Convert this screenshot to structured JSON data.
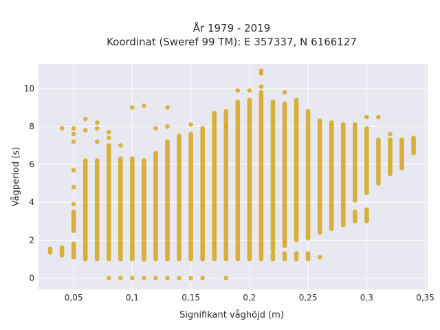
{
  "chart_data": {
    "type": "scatter",
    "title_line1": "År 1979 - 2019",
    "title_line2": "Koordinat (Sweref 99 TM): E 357337, N 6166127",
    "xlabel": "Signifikant våghöjd (m)",
    "ylabel": "Vågperiod (s)",
    "xlim": [
      0.02,
      0.352
    ],
    "ylim": [
      -0.6,
      11.3
    ],
    "x_ticks": [
      0.05,
      0.1,
      0.15,
      0.2,
      0.25,
      0.3,
      0.35
    ],
    "x_tick_labels": [
      "0,05",
      "0,1",
      "0,15",
      "0,2",
      "0,25",
      "0,3",
      "0,35"
    ],
    "y_ticks": [
      0,
      2,
      4,
      6,
      8,
      10
    ],
    "y_tick_labels": [
      "0",
      "2",
      "4",
      "6",
      "8",
      "10"
    ],
    "grid": true,
    "marker_color": "#D4A41A",
    "background_color": "#E8E8F0",
    "columns": [
      {
        "x": 0.03,
        "segments": [
          [
            1.35,
            1.55
          ]
        ],
        "points": []
      },
      {
        "x": 0.04,
        "segments": [
          [
            1.2,
            1.6
          ]
        ],
        "points": [
          7.9
        ]
      },
      {
        "x": 0.05,
        "segments": [
          [
            1.1,
            1.8
          ],
          [
            2.5,
            3.5
          ]
        ],
        "points": [
          3.9,
          4.8,
          5.7,
          7.2,
          7.6,
          7.9
        ]
      },
      {
        "x": 0.06,
        "segments": [
          [
            1.0,
            6.2
          ]
        ],
        "points": [
          7.8,
          8.4
        ]
      },
      {
        "x": 0.07,
        "segments": [
          [
            1.0,
            6.2
          ]
        ],
        "points": [
          7.2,
          7.9,
          8.2
        ]
      },
      {
        "x": 0.08,
        "segments": [
          [
            1.0,
            7.0
          ]
        ],
        "points": [
          0,
          7.4,
          7.7
        ]
      },
      {
        "x": 0.09,
        "segments": [
          [
            1.0,
            6.3
          ]
        ],
        "points": [
          0,
          7.0
        ]
      },
      {
        "x": 0.1,
        "segments": [
          [
            1.0,
            6.3
          ]
        ],
        "points": [
          0,
          9.0
        ]
      },
      {
        "x": 0.11,
        "segments": [
          [
            1.0,
            6.2
          ]
        ],
        "points": [
          0,
          9.1
        ]
      },
      {
        "x": 0.12,
        "segments": [
          [
            1.0,
            6.6
          ]
        ],
        "points": [
          0,
          7.9
        ]
      },
      {
        "x": 0.13,
        "segments": [
          [
            1.0,
            7.2
          ]
        ],
        "points": [
          0,
          8.0,
          9.0
        ]
      },
      {
        "x": 0.14,
        "segments": [
          [
            1.0,
            7.5
          ]
        ],
        "points": [
          0
        ]
      },
      {
        "x": 0.15,
        "segments": [
          [
            1.0,
            7.6
          ]
        ],
        "points": [
          0,
          8.1
        ]
      },
      {
        "x": 0.16,
        "segments": [
          [
            1.0,
            7.9
          ]
        ],
        "points": [
          0
        ]
      },
      {
        "x": 0.17,
        "segments": [
          [
            1.0,
            8.7
          ]
        ],
        "points": []
      },
      {
        "x": 0.18,
        "segments": [
          [
            1.0,
            8.8
          ]
        ],
        "points": [
          0,
          8.0
        ]
      },
      {
        "x": 0.19,
        "segments": [
          [
            1.0,
            9.3
          ]
        ],
        "points": [
          9.9
        ]
      },
      {
        "x": 0.2,
        "segments": [
          [
            1.0,
            9.4
          ]
        ],
        "points": [
          9.9
        ]
      },
      {
        "x": 0.21,
        "segments": [
          [
            1.0,
            9.8
          ]
        ],
        "points": [
          10.1,
          10.8,
          10.95
        ]
      },
      {
        "x": 0.22,
        "segments": [
          [
            1.5,
            9.3
          ],
          [
            1.0,
            1.3
          ]
        ],
        "points": []
      },
      {
        "x": 0.23,
        "segments": [
          [
            1.7,
            9.2
          ],
          [
            1.0,
            1.3
          ]
        ],
        "points": [
          9.8
        ]
      },
      {
        "x": 0.24,
        "segments": [
          [
            2.0,
            9.4
          ],
          [
            1.0,
            1.3
          ]
        ],
        "points": []
      },
      {
        "x": 0.25,
        "segments": [
          [
            2.1,
            8.8
          ],
          [
            1.0,
            1.3
          ]
        ],
        "points": []
      },
      {
        "x": 0.26,
        "segments": [
          [
            2.4,
            8.3
          ]
        ],
        "points": [
          1.1
        ]
      },
      {
        "x": 0.27,
        "segments": [
          [
            2.6,
            8.2
          ]
        ],
        "points": []
      },
      {
        "x": 0.28,
        "segments": [
          [
            2.8,
            8.1
          ]
        ],
        "points": []
      },
      {
        "x": 0.29,
        "segments": [
          [
            3.0,
            3.5
          ],
          [
            4.1,
            8.1
          ]
        ],
        "points": []
      },
      {
        "x": 0.3,
        "segments": [
          [
            3.0,
            3.6
          ],
          [
            4.5,
            7.9
          ]
        ],
        "points": [
          8.5
        ]
      },
      {
        "x": 0.31,
        "segments": [
          [
            5.0,
            7.3
          ]
        ],
        "points": [
          8.5
        ]
      },
      {
        "x": 0.32,
        "segments": [
          [
            5.5,
            7.3
          ]
        ],
        "points": [
          7.6
        ]
      },
      {
        "x": 0.33,
        "segments": [
          [
            5.8,
            7.3
          ]
        ],
        "points": []
      },
      {
        "x": 0.34,
        "segments": [
          [
            6.6,
            7.4
          ]
        ],
        "points": []
      }
    ]
  }
}
